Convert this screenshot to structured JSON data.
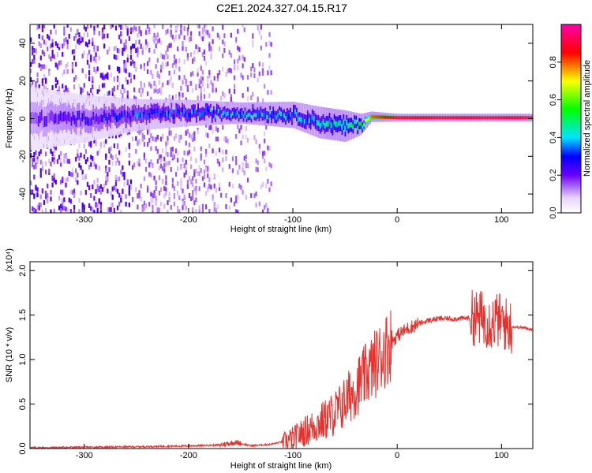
{
  "title": "C2E1.2024.327.04.15.R17",
  "chart_data": [
    {
      "type": "heatmap",
      "title": "C2E1.2024.327.04.15.R17",
      "xlabel": "Height of straight line (km)",
      "ylabel": "Frequency (Hz)",
      "xlim": [
        -352,
        130
      ],
      "ylim": [
        -50,
        50
      ],
      "xticks": [
        "-300",
        "-200",
        "-100",
        "0",
        "100"
      ],
      "yticks": [
        "-40",
        "-20",
        "0",
        "20",
        "40"
      ],
      "colorbar": {
        "label": "Normalized spectral amplitude",
        "range": [
          0.0,
          1.0
        ],
        "ticks": [
          "0.0",
          "0.2",
          "0.4",
          "0.6",
          "0.8"
        ]
      },
      "ridge": [
        {
          "x": -350,
          "freq": 0,
          "amp": 0.18,
          "spread": 12
        },
        {
          "x": -300,
          "freq": 0,
          "amp": 0.22,
          "spread": 9
        },
        {
          "x": -250,
          "freq": 2,
          "amp": 0.3,
          "spread": 6
        },
        {
          "x": -200,
          "freq": 3,
          "amp": 0.33,
          "spread": 5
        },
        {
          "x": -150,
          "freq": 3,
          "amp": 0.38,
          "spread": 4
        },
        {
          "x": -100,
          "freq": 2,
          "amp": 0.38,
          "spread": 5
        },
        {
          "x": -75,
          "freq": -2,
          "amp": 0.38,
          "spread": 6
        },
        {
          "x": -50,
          "freq": -4,
          "amp": 0.45,
          "spread": 6
        },
        {
          "x": -35,
          "freq": -3,
          "amp": 0.5,
          "spread": 4
        },
        {
          "x": -25,
          "freq": 1,
          "amp": 0.8,
          "spread": 2
        },
        {
          "x": 0,
          "freq": 0.5,
          "amp": 0.9,
          "spread": 1.5
        },
        {
          "x": 50,
          "freq": 0.5,
          "amp": 0.92,
          "spread": 1.5
        },
        {
          "x": 100,
          "freq": 0.5,
          "amp": 0.93,
          "spread": 1.5
        },
        {
          "x": 130,
          "freq": 0.5,
          "amp": 0.92,
          "spread": 1.5
        }
      ]
    },
    {
      "type": "line",
      "xlabel": "Height of straight line (km)",
      "ylabel": "SNR (10 * v/v)",
      "multiplier": "(x10⁴)",
      "xlim": [
        -352,
        130
      ],
      "ylim": [
        0,
        2.1
      ],
      "xticks": [
        "-300",
        "-200",
        "-100",
        "0",
        "100"
      ],
      "yticks": [
        "0.0",
        "0.5",
        "1.0",
        "1.5",
        "2.0"
      ],
      "color": "#e8302c",
      "series": [
        {
          "x": [
            -350,
            -300,
            -250,
            -200,
            -170,
            -155,
            -140,
            -120,
            -105,
            -95,
            -80,
            -65,
            -55,
            -45,
            -35,
            -25,
            -18,
            -12,
            -5,
            0,
            10,
            20,
            30,
            40,
            50,
            60,
            70,
            80,
            85,
            90,
            95,
            100,
            105,
            110,
            120,
            130
          ],
          "y": [
            0.01,
            0.015,
            0.02,
            0.03,
            0.04,
            0.07,
            0.03,
            0.05,
            0.09,
            0.15,
            0.25,
            0.35,
            0.45,
            0.6,
            0.75,
            0.9,
            1.0,
            1.1,
            1.2,
            1.27,
            1.35,
            1.4,
            1.44,
            1.46,
            1.46,
            1.46,
            1.47,
            1.47,
            1.45,
            1.42,
            1.45,
            1.43,
            1.39,
            1.37,
            1.36,
            1.34
          ]
        }
      ]
    }
  ]
}
